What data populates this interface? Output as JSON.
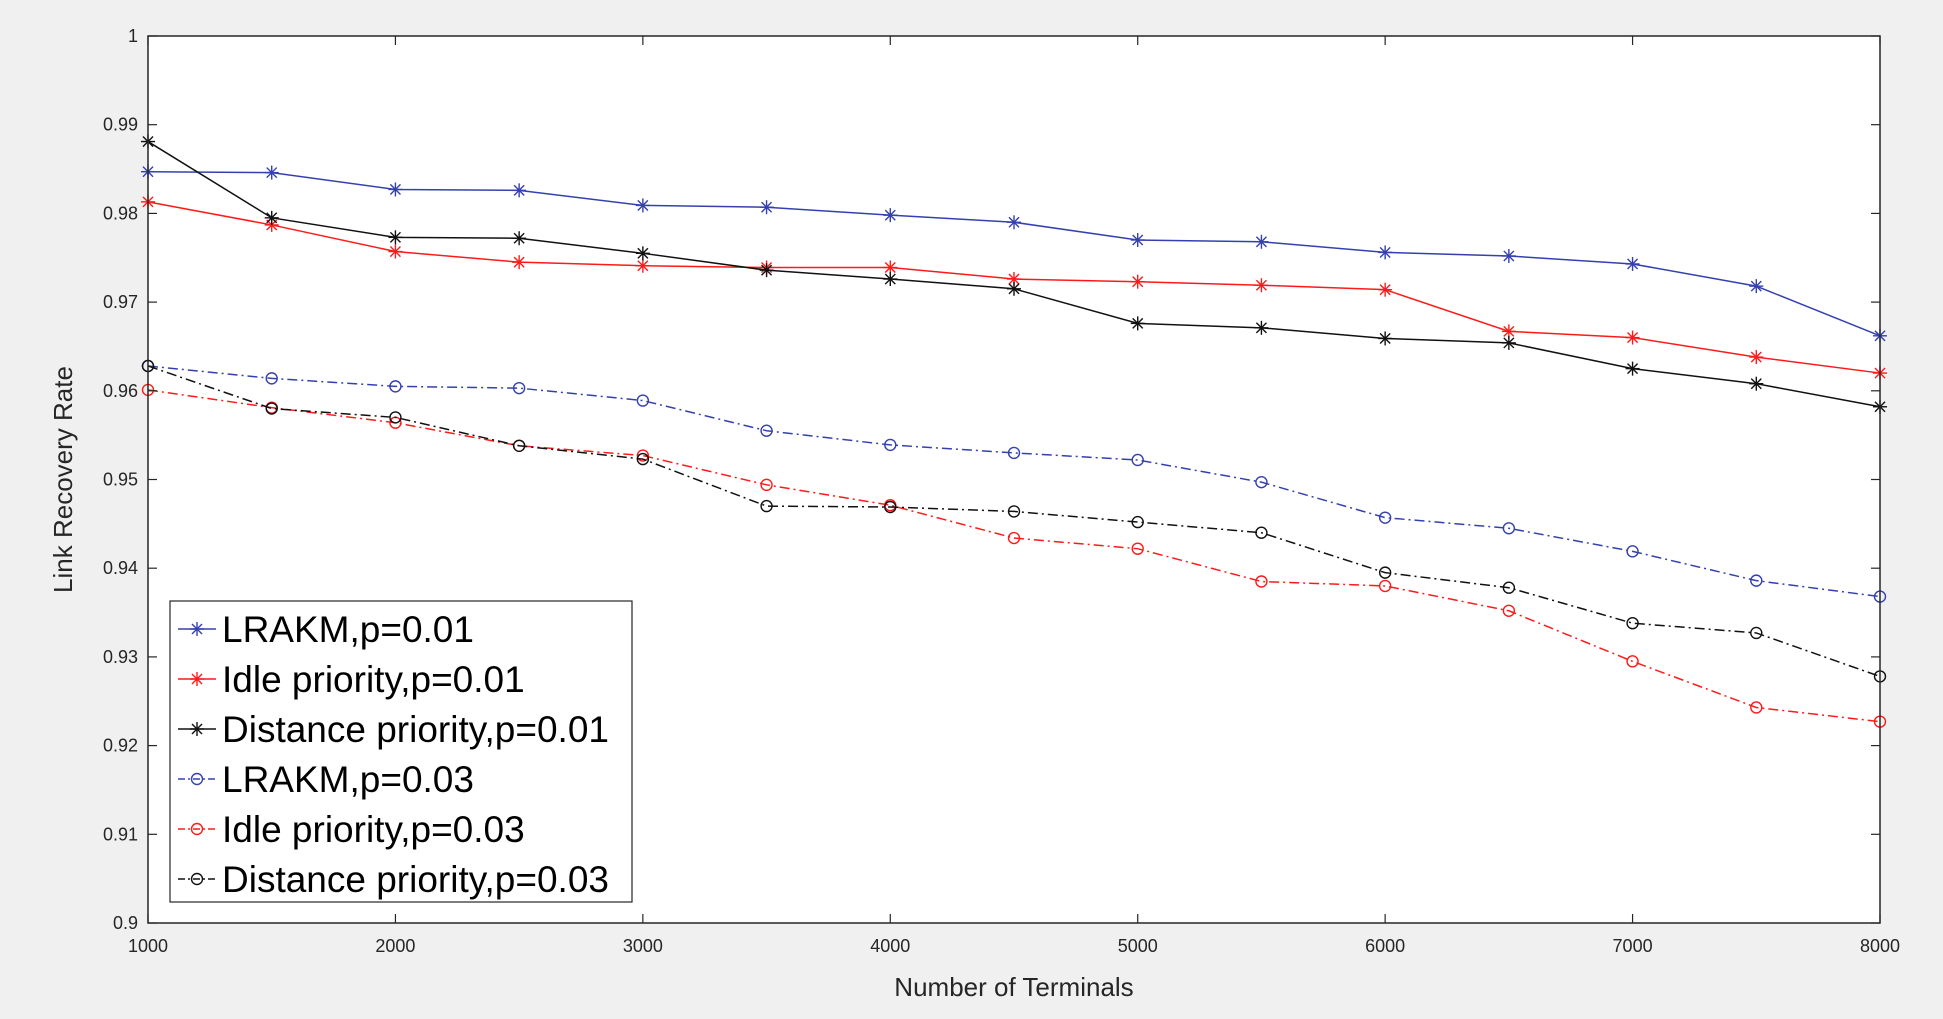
{
  "chart_data": {
    "type": "line",
    "title": "",
    "xlabel": "Number of Terminals",
    "ylabel": "Link Recovery Rate",
    "xlim": [
      1000,
      8000
    ],
    "ylim": [
      0.9,
      1.0
    ],
    "xticks": [
      1000,
      2000,
      3000,
      4000,
      5000,
      6000,
      7000,
      8000
    ],
    "xtick_labels": [
      "1000",
      "2000",
      "3000",
      "4000",
      "5000",
      "6000",
      "7000",
      "8000"
    ],
    "yticks": [
      0.9,
      0.91,
      0.92,
      0.93,
      0.94,
      0.95,
      0.96,
      0.97,
      0.98,
      0.99,
      1.0
    ],
    "ytick_labels": [
      "0.9",
      "0.91",
      "0.92",
      "0.93",
      "0.94",
      "0.95",
      "0.96",
      "0.97",
      "0.98",
      "0.99",
      "1"
    ],
    "grid": false,
    "legend_position": "bottom-left",
    "x": [
      1000,
      1500,
      2000,
      2500,
      3000,
      3500,
      4000,
      4500,
      5000,
      5500,
      6000,
      6500,
      7000,
      7500,
      8000
    ],
    "series": [
      {
        "name": "LRAKM,p=0.01",
        "color": "#3540b0",
        "marker": "asterisk",
        "line_style": "solid",
        "values": [
          0.9847,
          0.9846,
          0.9827,
          0.9826,
          0.9809,
          0.9807,
          0.9798,
          0.979,
          0.977,
          0.9768,
          0.9756,
          0.9752,
          0.9743,
          0.9718,
          0.9662
        ]
      },
      {
        "name": "Idle priority,p=0.01",
        "color": "#ff1a1a",
        "marker": "asterisk",
        "line_style": "solid",
        "values": [
          0.9813,
          0.9787,
          0.9757,
          0.9745,
          0.9741,
          0.9739,
          0.9739,
          0.9726,
          0.9723,
          0.9719,
          0.9714,
          0.9667,
          0.966,
          0.9638,
          0.962
        ]
      },
      {
        "name": "Distance priority,p=0.01",
        "color": "#111111",
        "marker": "asterisk",
        "line_style": "solid",
        "values": [
          0.9881,
          0.9795,
          0.9773,
          0.9772,
          0.9755,
          0.9736,
          0.9726,
          0.9715,
          0.9676,
          0.9671,
          0.9659,
          0.9654,
          0.9625,
          0.9608,
          0.9582
        ]
      },
      {
        "name": "LRAKM,p=0.03",
        "color": "#3540b0",
        "marker": "circle",
        "line_style": "dashdot",
        "values": [
          0.9628,
          0.9614,
          0.9605,
          0.9603,
          0.9589,
          0.9555,
          0.9539,
          0.953,
          0.9522,
          0.9497,
          0.9457,
          0.9445,
          0.9419,
          0.9386,
          0.9368
        ]
      },
      {
        "name": "Idle priority,p=0.03",
        "color": "#ff1a1a",
        "marker": "circle",
        "line_style": "dashdot",
        "values": [
          0.9601,
          0.9581,
          0.9564,
          0.9538,
          0.9527,
          0.9494,
          0.9471,
          0.9434,
          0.9422,
          0.9385,
          0.938,
          0.9352,
          0.9295,
          0.9243,
          0.9227
        ]
      },
      {
        "name": "Distance priority,p=0.03",
        "color": "#111111",
        "marker": "circle",
        "line_style": "dashdot",
        "values": [
          0.9628,
          0.958,
          0.957,
          0.9538,
          0.9523,
          0.947,
          0.9469,
          0.9464,
          0.9452,
          0.944,
          0.9395,
          0.9378,
          0.9338,
          0.9327,
          0.9278
        ]
      }
    ]
  }
}
